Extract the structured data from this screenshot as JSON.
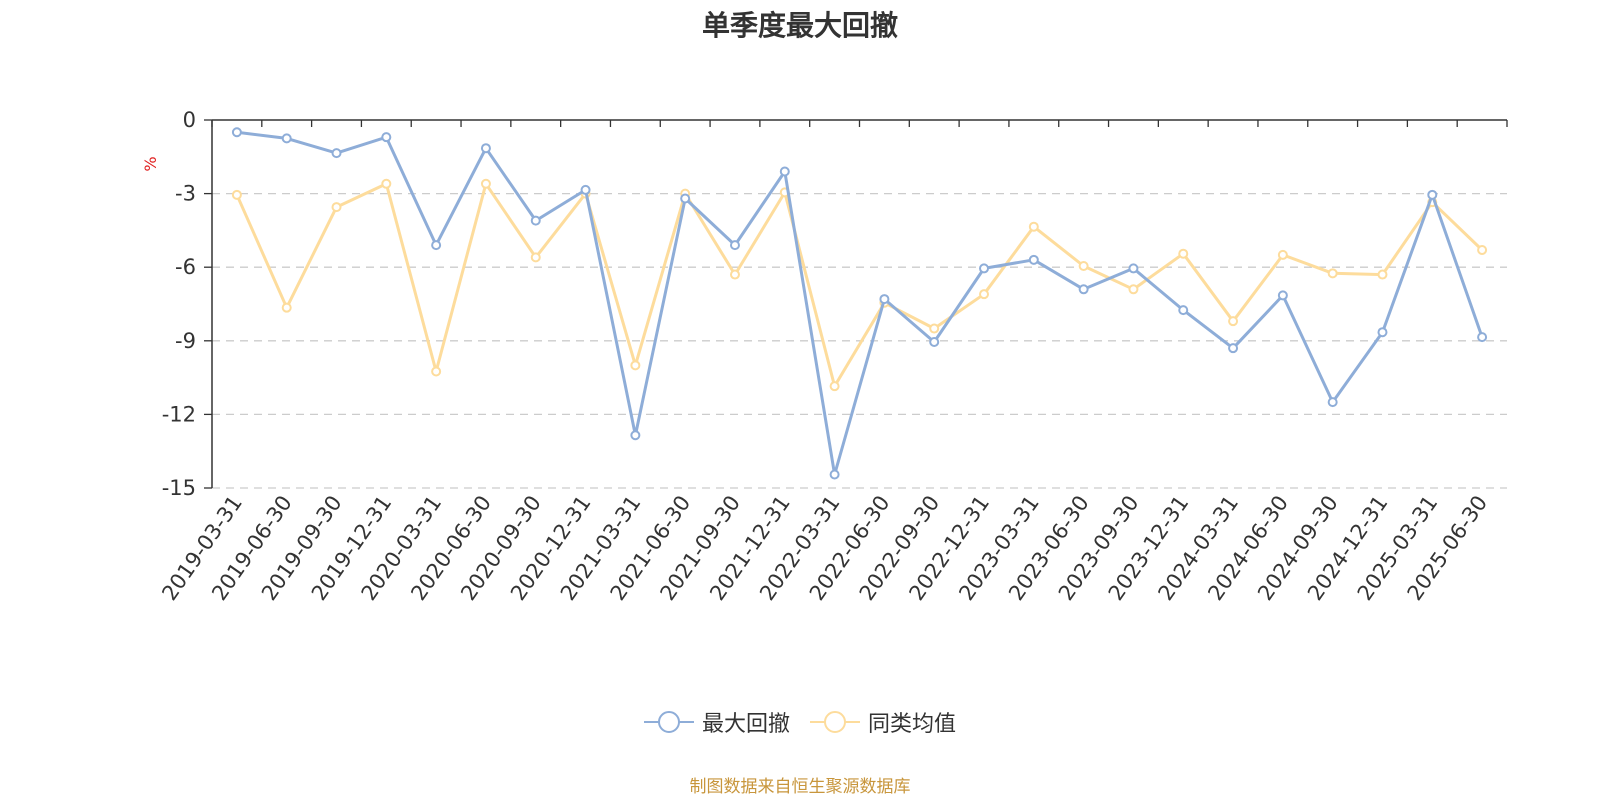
{
  "chart_data": {
    "type": "line",
    "title": "单季度最大回撤",
    "ylabel": "%",
    "ylim": [
      -15,
      0
    ],
    "yticks": [
      0,
      -3,
      -6,
      -9,
      -12,
      -15
    ],
    "grid": true,
    "legend_position": "bottom",
    "categories": [
      "2019-03-31",
      "2019-06-30",
      "2019-09-30",
      "2019-12-31",
      "2020-03-31",
      "2020-06-30",
      "2020-09-30",
      "2020-12-31",
      "2021-03-31",
      "2021-06-30",
      "2021-09-30",
      "2021-12-31",
      "2022-03-31",
      "2022-06-30",
      "2022-09-30",
      "2022-12-31",
      "2023-03-31",
      "2023-06-30",
      "2023-09-30",
      "2023-12-31",
      "2024-03-31",
      "2024-06-30",
      "2024-09-30",
      "2024-12-31",
      "2025-03-31",
      "2025-06-30"
    ],
    "series": [
      {
        "name": "最大回撤",
        "color": "#8eadd8",
        "values": [
          -0.5,
          -0.75,
          -1.35,
          -0.7,
          -5.1,
          -1.15,
          -4.1,
          -2.85,
          -12.85,
          -3.2,
          -5.1,
          -2.1,
          -14.45,
          -7.3,
          -9.05,
          -6.05,
          -5.7,
          -6.9,
          -6.05,
          -7.75,
          -9.3,
          -7.15,
          -11.5,
          -8.65,
          -3.05,
          -8.85
        ]
      },
      {
        "name": "同类均值",
        "color": "#fddc9c",
        "values": [
          -3.05,
          -7.65,
          -3.55,
          -2.6,
          -10.25,
          -2.6,
          -5.6,
          -3.0,
          -10.0,
          -3.0,
          -6.3,
          -2.95,
          -10.85,
          -7.45,
          -8.5,
          -7.1,
          -4.35,
          -5.95,
          -6.9,
          -5.45,
          -8.2,
          -5.5,
          -6.25,
          -6.3,
          -3.35,
          -5.3
        ]
      }
    ]
  },
  "source_note": "制图数据来自恒生聚源数据库"
}
